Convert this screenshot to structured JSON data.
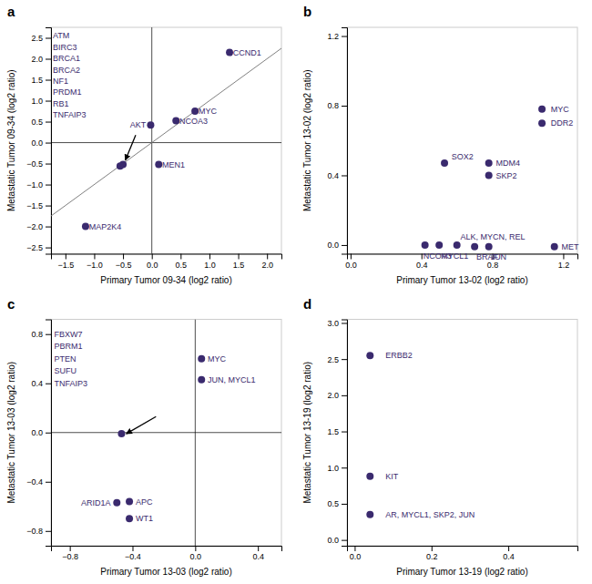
{
  "chart_data": [
    {
      "type": "scatter",
      "title": "a",
      "xlabel": "Primary  Tumor 09-34 (log2 ratio)",
      "ylabel": "Metastatic Tumor 09-34 (log2 ratio)",
      "color": "#3a2a6e",
      "xlim": [
        -1.75,
        2.25
      ],
      "ylim": [
        -2.65,
        2.75
      ],
      "xticks": [
        {
          "value": -1.5,
          "label": "−1.5"
        },
        {
          "value": -1.0,
          "label": "−1.0"
        },
        {
          "value": -0.5,
          "label": "−0.5"
        },
        {
          "value": 0.0,
          "label": "0.0"
        },
        0.5,
        {
          "value": 1.0,
          "label": "1.0"
        },
        1.5,
        {
          "value": 2.0,
          "label": "2.0"
        }
      ],
      "yticks": [
        {
          "value": -2.5,
          "label": "−2.5"
        },
        {
          "value": -2.0,
          "label": "−2.0"
        },
        {
          "value": -1.5,
          "label": "−1.5"
        },
        {
          "value": -1.0,
          "label": "−1.0"
        },
        {
          "value": -0.5,
          "label": "−0.5"
        },
        {
          "value": 0.0,
          "label": "0.0"
        },
        0.5,
        {
          "value": 1.0,
          "label": "1.0"
        },
        1.5,
        {
          "value": 2.0,
          "label": "2.0"
        },
        2.5
      ],
      "x": [
        1.35,
        0.75,
        0.42,
        -0.02,
        0.12,
        -0.5,
        -0.55,
        -1.15
      ],
      "values": [
        2.15,
        0.75,
        0.52,
        0.42,
        -0.52,
        -0.52,
        -0.56,
        -2.0
      ],
      "hlines": [
        0
      ],
      "vlines": [
        0
      ],
      "lines": [
        {
          "x": [
            -1.75,
            2.25
          ],
          "y": [
            -1.75,
            2.25
          ]
        }
      ],
      "arrow": {
        "from": [
          -0.28,
          0.18
        ],
        "to": [
          -0.46,
          -0.42
        ]
      },
      "annotations": [
        {
          "text": "CCND1",
          "x": 1.41,
          "y": 2.15,
          "align": "left"
        },
        {
          "text": "MYC",
          "x": 0.81,
          "y": 0.75,
          "align": "left"
        },
        {
          "text": "NCOA3",
          "x": 0.48,
          "y": 0.52,
          "align": "left"
        },
        {
          "text": "AKT",
          "x": -0.1,
          "y": 0.42,
          "align": "right"
        },
        {
          "text": "MEN1",
          "x": 0.18,
          "y": -0.52,
          "align": "left"
        },
        {
          "text": "MAP2K4",
          "x": -1.09,
          "y": -2.0,
          "align": "left"
        },
        {
          "text": "ATM",
          "x": -1.72,
          "y": 2.55,
          "align": "left"
        },
        {
          "text": "BIRC3",
          "x": -1.72,
          "y": 2.28,
          "align": "left"
        },
        {
          "text": "BRCA1",
          "x": -1.72,
          "y": 2.01,
          "align": "left"
        },
        {
          "text": "BRCA2",
          "x": -1.72,
          "y": 1.74,
          "align": "left"
        },
        {
          "text": "NF1",
          "x": -1.72,
          "y": 1.47,
          "align": "left"
        },
        {
          "text": "PRDM1",
          "x": -1.72,
          "y": 1.2,
          "align": "left"
        },
        {
          "text": "RB1",
          "x": -1.72,
          "y": 0.93,
          "align": "left"
        },
        {
          "text": "TNFAIP3",
          "x": -1.72,
          "y": 0.66,
          "align": "left"
        }
      ]
    },
    {
      "type": "scatter",
      "title": "b",
      "xlabel": "Primary  Tumor 13-02 (log2 ratio)",
      "ylabel": "Metastatic Tumor 13-02 (log2 ratio)",
      "color": "#3a2a6e",
      "xlim": [
        -0.02,
        1.28
      ],
      "ylim": [
        -0.05,
        1.25
      ],
      "xticks": [
        {
          "value": 0.0,
          "label": "0.0"
        },
        0.4,
        0.8,
        1.2
      ],
      "yticks": [
        {
          "value": 0.0,
          "label": "0.0"
        },
        0.4,
        0.8,
        1.2
      ],
      "x": [
        1.08,
        1.08,
        0.53,
        0.78,
        0.78,
        0.42,
        0.5,
        0.6,
        0.7,
        0.78,
        1.15
      ],
      "values": [
        0.78,
        0.7,
        0.47,
        0.47,
        0.4,
        0.0,
        0.0,
        0.0,
        -0.01,
        -0.01,
        -0.01
      ],
      "annotations": [
        {
          "text": "MYC",
          "x": 1.13,
          "y": 0.78,
          "align": "left"
        },
        {
          "text": "DDR2",
          "x": 1.13,
          "y": 0.7,
          "align": "left"
        },
        {
          "text": "SOX2",
          "x": 0.57,
          "y": 0.51,
          "align": "left"
        },
        {
          "text": "MDM4",
          "x": 0.82,
          "y": 0.47,
          "align": "left"
        },
        {
          "text": "SKP2",
          "x": 0.82,
          "y": 0.4,
          "align": "left"
        },
        {
          "text": "NCOA3",
          "x": 0.41,
          "y": -0.06,
          "align": "left"
        },
        {
          "text": "MYCL1",
          "x": 0.51,
          "y": -0.06,
          "align": "left"
        },
        {
          "text": "ALK, MYCN, REL",
          "x": 0.62,
          "y": 0.05,
          "align": "left"
        },
        {
          "text": "BRAF",
          "x": 0.71,
          "y": -0.07,
          "align": "left"
        },
        {
          "text": "JUN",
          "x": 0.79,
          "y": -0.07,
          "align": "left"
        },
        {
          "text": "MET",
          "x": 1.19,
          "y": -0.01,
          "align": "left"
        }
      ]
    },
    {
      "type": "scatter",
      "title": "c",
      "xlabel": "Primary  Tumor 13-03 (log2 ratio)",
      "ylabel": "Metastatic Tumor 13-03 (log2 ratio)",
      "color": "#3a2a6e",
      "xlim": [
        -0.92,
        0.55
      ],
      "ylim": [
        -0.92,
        0.92
      ],
      "xticks": [
        {
          "value": -0.8,
          "label": "−0.8"
        },
        {
          "value": -0.4,
          "label": "−0.4"
        },
        {
          "value": 0.0,
          "label": "0.0"
        },
        0.4
      ],
      "yticks": [
        {
          "value": -0.8,
          "label": "−0.8"
        },
        {
          "value": -0.4,
          "label": "−0.4"
        },
        {
          "value": 0.0,
          "label": "0.0"
        },
        0.4,
        0.8
      ],
      "x": [
        0.04,
        0.04,
        -0.47,
        -0.42,
        -0.5,
        -0.42
      ],
      "values": [
        0.6,
        0.43,
        -0.01,
        -0.56,
        -0.57,
        -0.7
      ],
      "hlines": [
        0
      ],
      "vlines": [
        0
      ],
      "arrow": {
        "from": [
          -0.25,
          0.13
        ],
        "to": [
          -0.44,
          -0.01
        ]
      },
      "annotations": [
        {
          "text": "MYC",
          "x": 0.08,
          "y": 0.6,
          "align": "left"
        },
        {
          "text": "JUN, MYCL1",
          "x": 0.08,
          "y": 0.43,
          "align": "left"
        },
        {
          "text": "APC",
          "x": -0.38,
          "y": -0.56,
          "align": "left"
        },
        {
          "text": "ARID1A",
          "x": -0.54,
          "y": -0.57,
          "align": "right"
        },
        {
          "text": "WT1",
          "x": -0.38,
          "y": -0.7,
          "align": "left"
        },
        {
          "text": "FBXW7",
          "x": -0.9,
          "y": 0.8,
          "align": "left"
        },
        {
          "text": "PBRM1",
          "x": -0.9,
          "y": 0.7,
          "align": "left"
        },
        {
          "text": "PTEN",
          "x": -0.9,
          "y": 0.6,
          "align": "left"
        },
        {
          "text": "SUFU",
          "x": -0.9,
          "y": 0.5,
          "align": "left"
        },
        {
          "text": "TNFAIP3",
          "x": -0.9,
          "y": 0.4,
          "align": "left"
        }
      ]
    },
    {
      "type": "scatter",
      "title": "d",
      "xlabel": "Primary  Tumor 13-19 (log2 ratio)",
      "ylabel": "Metastatic Tumor 13-19 (log2 ratio)",
      "color": "#3a2a6e",
      "xlim": [
        -0.02,
        0.58
      ],
      "ylim": [
        -0.08,
        3.05
      ],
      "xticks": [
        {
          "value": 0.0,
          "label": "0.0"
        },
        0.2,
        0.4
      ],
      "yticks": [
        {
          "value": 0.0,
          "label": "0.0"
        },
        0.5,
        {
          "value": 1.0,
          "label": "1.0"
        },
        1.5,
        {
          "value": 2.0,
          "label": "2.0"
        },
        2.5,
        {
          "value": 3.0,
          "label": "3.0"
        }
      ],
      "x": [
        0.04,
        0.04,
        0.04
      ],
      "values": [
        2.55,
        0.88,
        0.35
      ],
      "annotations": [
        {
          "text": "ERBB2",
          "x": 0.08,
          "y": 2.55,
          "align": "left"
        },
        {
          "text": "KIT",
          "x": 0.08,
          "y": 0.88,
          "align": "left"
        },
        {
          "text": "AR, MYCL1, SKP2, JUN",
          "x": 0.08,
          "y": 0.35,
          "align": "left"
        }
      ]
    }
  ]
}
